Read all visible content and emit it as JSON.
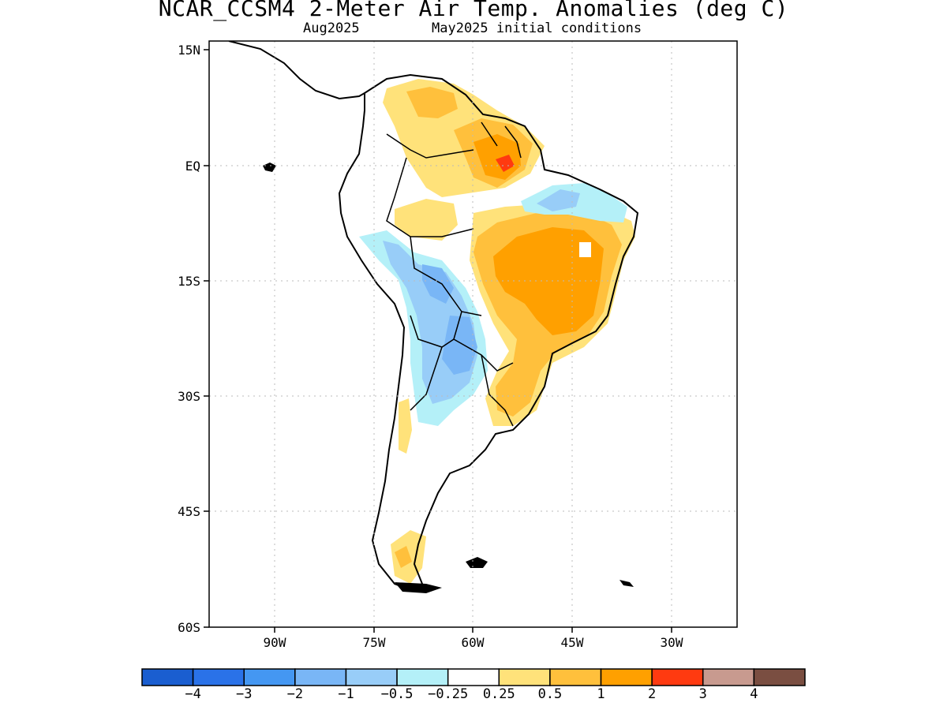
{
  "title": "NCAR_CCSM4 2-Meter Air Temp. Anomalies (deg C)",
  "subtitle_left": "Aug2025",
  "subtitle_right": "May2025 initial conditions",
  "lat_ticks": [
    "15N",
    "EQ",
    "15S",
    "30S",
    "45S",
    "60S"
  ],
  "lon_ticks": [
    "90W",
    "75W",
    "60W",
    "45W",
    "30W"
  ],
  "colorbar": {
    "colors": [
      "#1a5ed0",
      "#2a72e8",
      "#4497f2",
      "#79b6f6",
      "#98cdf8",
      "#b4f0f8",
      "#ffffff",
      "#ffe27a",
      "#ffc03c",
      "#ffa000",
      "#ff3a10",
      "#c89a8f",
      "#7a4e41"
    ],
    "labels": [
      "−4",
      "−3",
      "−2",
      "−1",
      "−0.5",
      "−0.25",
      "0.25",
      "0.5",
      "1",
      "2",
      "3",
      "4"
    ]
  }
}
